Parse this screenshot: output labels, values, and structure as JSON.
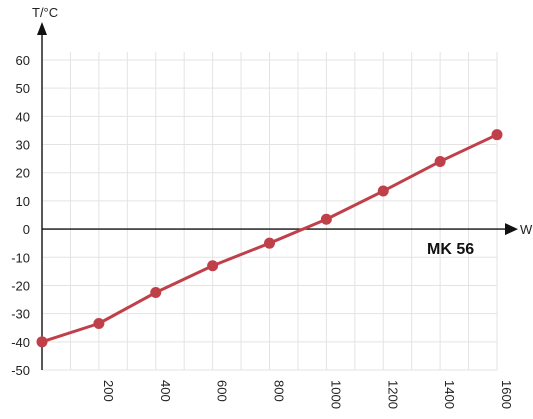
{
  "chart_data": {
    "type": "line",
    "ylabel": "T/°C",
    "xlabel": "W",
    "ylim": [
      -50,
      60
    ],
    "xlim": [
      0,
      1600
    ],
    "yticks": [
      "60",
      "50",
      "40",
      "30",
      "20",
      "10",
      "0",
      "-10",
      "-20",
      "-30",
      "-40",
      "-50"
    ],
    "yticks_values": [
      60,
      50,
      40,
      30,
      20,
      10,
      0,
      -10,
      -20,
      -30,
      -40,
      -50
    ],
    "xticks": [
      "200",
      "400",
      "600",
      "800",
      "1000",
      "1200",
      "1400",
      "1600"
    ],
    "xticks_values": [
      200,
      400,
      600,
      800,
      1000,
      1200,
      1400,
      1600
    ],
    "grid": true,
    "series": [
      {
        "name": "MK 56",
        "color": "#c0404a",
        "x": [
          0,
          200,
          400,
          600,
          800,
          1000,
          1200,
          1400,
          1600
        ],
        "y": [
          -40,
          -33.5,
          -22.5,
          -13,
          -5,
          3.5,
          13.5,
          24,
          33.5
        ]
      }
    ]
  }
}
